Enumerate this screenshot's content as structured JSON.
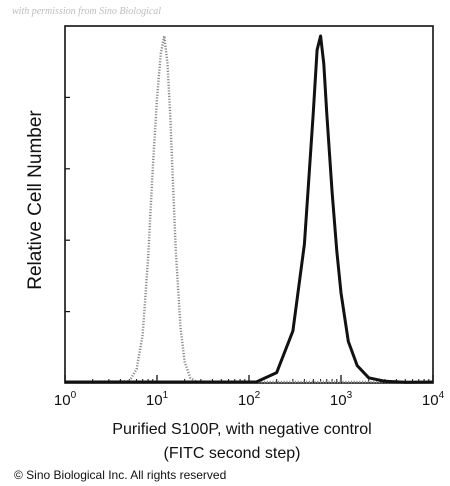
{
  "watermark": "with permission from Sino Biological",
  "copyright": "© Sino Biological Inc. All rights reserved",
  "chart_data": {
    "type": "line",
    "ylabel": "Relative Cell Number",
    "xlabel_line1": "Purified S100P, with negative control",
    "xlabel_line2": "(FITC second step)",
    "x_scale": "log",
    "xlim": [
      1,
      10000
    ],
    "ylim": [
      0,
      100
    ],
    "grid": false,
    "x_ticks": [
      {
        "base": "10",
        "exp": "0",
        "value": 1
      },
      {
        "base": "10",
        "exp": "1",
        "value": 10
      },
      {
        "base": "10",
        "exp": "2",
        "value": 100
      },
      {
        "base": "10",
        "exp": "3",
        "value": 1000
      },
      {
        "base": "10",
        "exp": "4",
        "value": 10000
      }
    ],
    "series": [
      {
        "style": "dotted-gray",
        "color": "#8a8a8a",
        "x": [
          5.0,
          6.0,
          7.0,
          8.0,
          9.0,
          10.0,
          11.0,
          12.0,
          13.0,
          14.0,
          15.0,
          16.0,
          18.0,
          20.0,
          23.0,
          27.0
        ],
        "y": [
          0.5,
          4,
          14,
          36,
          62,
          82,
          95,
          100,
          92,
          76,
          56,
          38,
          16,
          6,
          1.5,
          0.3
        ]
      },
      {
        "style": "solid-black",
        "color": "#111111",
        "x": [
          120,
          200,
          300,
          400,
          450,
          500,
          550,
          600,
          650,
          700,
          800,
          900,
          1000,
          1200,
          1500,
          2000,
          3000,
          5000
        ],
        "y": [
          0.3,
          3,
          15,
          40,
          60,
          78,
          96,
          100,
          92,
          78,
          55,
          38,
          26,
          12,
          5,
          1.5,
          0.5,
          0.2
        ]
      }
    ]
  }
}
